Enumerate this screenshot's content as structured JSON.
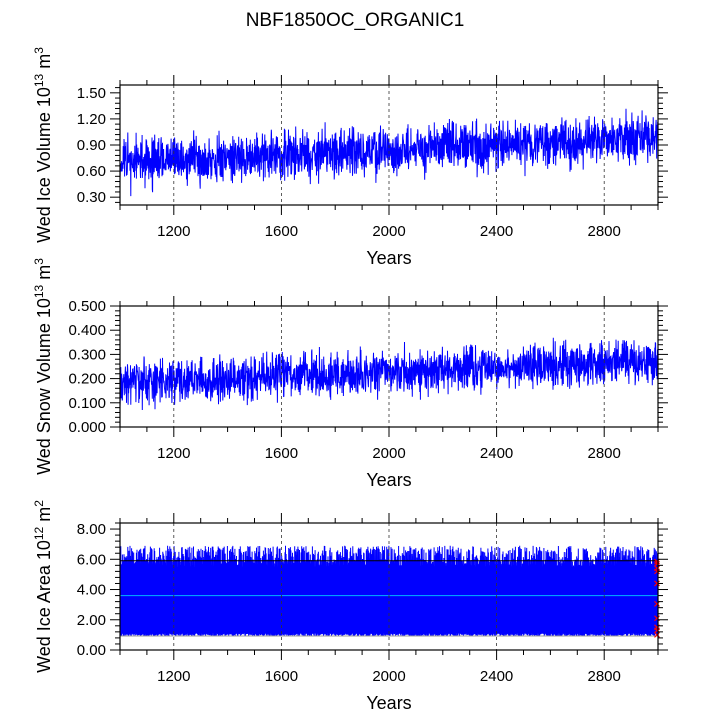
{
  "chart_data": [
    {
      "type": "line",
      "title": "NBF1850OC_ORGANIC1",
      "ylabel": "Wed Ice Volume 10^13 m^3",
      "ylabel_main": "Wed Ice Volume 10",
      "ylabel_exp": "13",
      "ylabel_unit": " m",
      "ylabel_unit_exp": "3",
      "xlabel": "Years",
      "xlim": [
        1000,
        3000
      ],
      "ylim": [
        0.21,
        1.59
      ],
      "xticks": [
        "1200",
        "1600",
        "2000",
        "2400",
        "2800"
      ],
      "xtick_values": [
        1200,
        1600,
        2000,
        2400,
        2800
      ],
      "yticks": [
        "0.30",
        "0.60",
        "0.90",
        "1.20",
        "1.50"
      ],
      "ytick_values": [
        0.3,
        0.6,
        0.9,
        1.2,
        1.5
      ],
      "series": [
        {
          "name": "ice volume",
          "color": "#0000ff",
          "mean_start": 0.7,
          "mean_end": 0.98,
          "spread": 0.17,
          "seed": 11
        }
      ]
    },
    {
      "type": "line",
      "ylabel_main": "Wed Snow Volume 10",
      "ylabel_exp": "13",
      "ylabel_unit": " m",
      "ylabel_unit_exp": "3",
      "xlabel": "Years",
      "xlim": [
        1000,
        3000
      ],
      "ylim": [
        0.0,
        0.5
      ],
      "xticks": [
        "1200",
        "1600",
        "2000",
        "2400",
        "2800"
      ],
      "xtick_values": [
        1200,
        1600,
        2000,
        2400,
        2800
      ],
      "yticks": [
        "0.000",
        "0.100",
        "0.200",
        "0.300",
        "0.400",
        "0.500"
      ],
      "ytick_values": [
        0.0,
        0.1,
        0.2,
        0.3,
        0.4,
        0.5
      ],
      "series": [
        {
          "name": "snow volume",
          "color": "#0000ff",
          "mean_start": 0.18,
          "mean_end": 0.27,
          "spread": 0.055,
          "seed": 23
        }
      ]
    },
    {
      "type": "line",
      "ylabel_main": "Wed Ice Area 10",
      "ylabel_exp": "12",
      "ylabel_unit": " m",
      "ylabel_unit_exp": "2",
      "xlabel": "Years",
      "xlim": [
        1000,
        3000
      ],
      "ylim": [
        0.0,
        8.4
      ],
      "xticks": [
        "1200",
        "1600",
        "2000",
        "2400",
        "2800"
      ],
      "xtick_values": [
        1200,
        1600,
        2000,
        2400,
        2800
      ],
      "yticks": [
        "0.00",
        "2.00",
        "4.00",
        "6.00",
        "8.00"
      ],
      "ytick_values": [
        0,
        2,
        4,
        6,
        8
      ],
      "series": [
        {
          "name": "ice area",
          "color": "#0000ff",
          "min_base": 1.0,
          "max_base": 6.2,
          "seed": 37
        }
      ],
      "reference_lines": [
        {
          "value": 5.9,
          "color": "#000000"
        },
        {
          "value": 3.6,
          "color": "#00b4ff"
        },
        {
          "value": 0.93,
          "color": "#999999"
        }
      ],
      "markers": {
        "color": "#ff0000",
        "values": [
          5.85,
          5.7,
          5.4,
          5.2,
          4.4,
          3.05,
          2.1,
          1.5,
          1.3,
          1.0
        ]
      }
    }
  ]
}
